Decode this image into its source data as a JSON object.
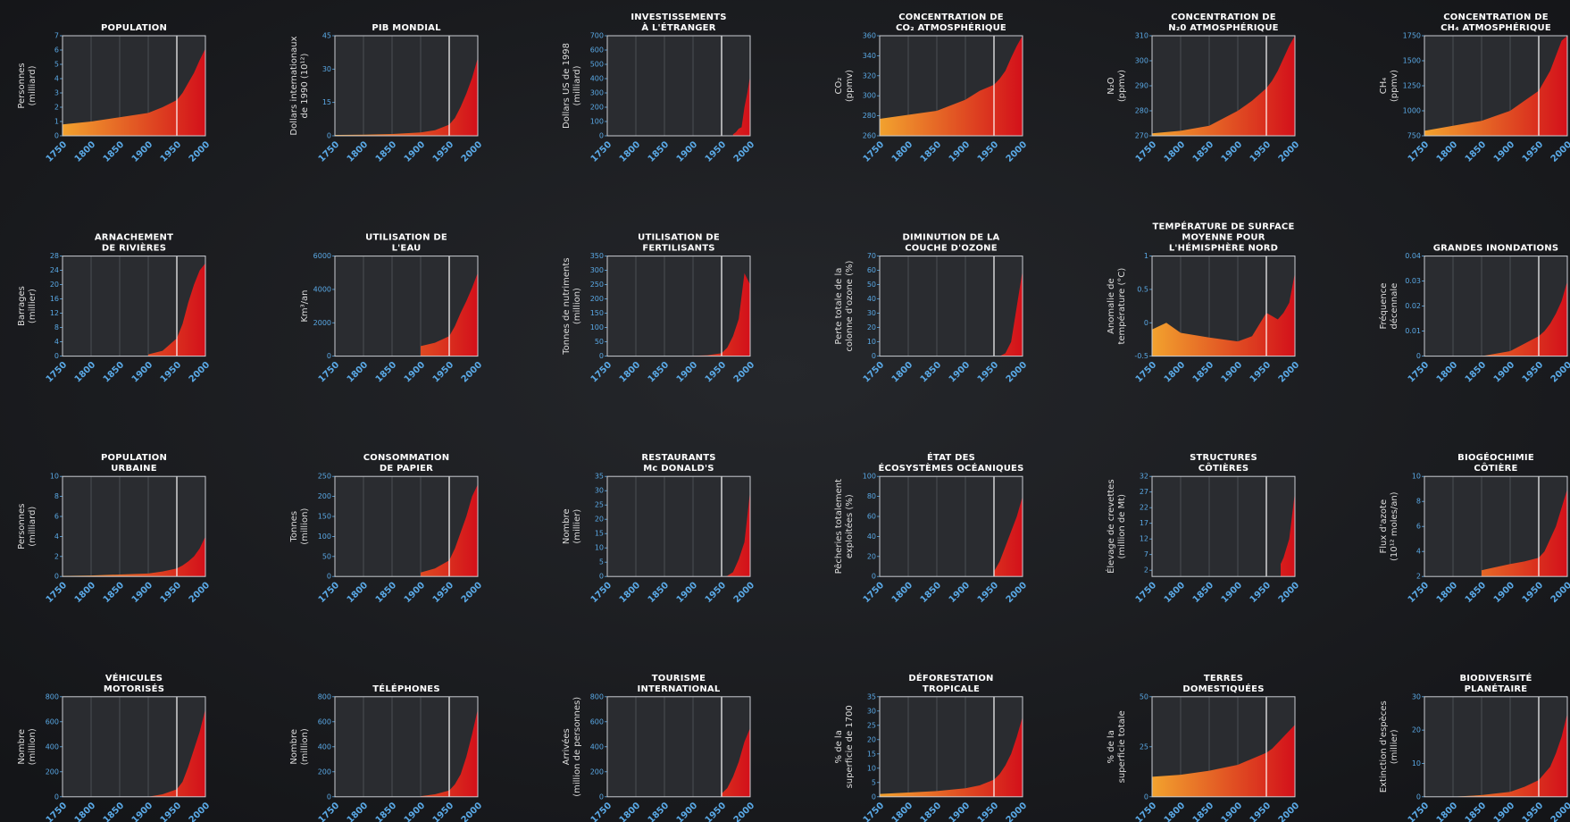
{
  "style": {
    "fill_from": "#f2a22e",
    "fill_to": "#d3101a",
    "plot_bg": "#2a2c30"
  },
  "chart_data": [
    {
      "type": "area",
      "title": [
        "POPULATION"
      ],
      "ylabel": [
        "Personnes",
        "(milliard)"
      ],
      "xlim": [
        1750,
        2000
      ],
      "xticks": [
        1750,
        1800,
        1850,
        1900,
        1950,
        2000
      ],
      "ylim": [
        0,
        7
      ],
      "yticks": [
        0,
        1,
        2,
        3,
        4,
        5,
        6,
        7
      ],
      "reference_line": 1950,
      "x": [
        1750,
        1800,
        1850,
        1900,
        1925,
        1950,
        1960,
        1970,
        1980,
        1990,
        2000
      ],
      "values": [
        0.8,
        1.0,
        1.3,
        1.6,
        2.0,
        2.5,
        3.0,
        3.7,
        4.4,
        5.3,
        6.1
      ]
    },
    {
      "type": "area",
      "title": [
        "PIB MONDIAL"
      ],
      "ylabel": [
        "Dollars internationaux",
        "de 1990 (10¹²)"
      ],
      "xlim": [
        1750,
        2000
      ],
      "xticks": [
        1750,
        1800,
        1850,
        1900,
        1950,
        2000
      ],
      "ylim": [
        0,
        45
      ],
      "yticks": [
        0,
        15,
        30,
        45
      ],
      "reference_line": 1950,
      "x": [
        1750,
        1800,
        1850,
        1900,
        1925,
        1950,
        1960,
        1970,
        1980,
        1990,
        2000
      ],
      "values": [
        0.4,
        0.5,
        0.8,
        1.5,
        2.5,
        5,
        8,
        13,
        19,
        26,
        35
      ]
    },
    {
      "type": "area",
      "title": [
        "INVESTISSEMENTS",
        "À L'ÉTRANGER"
      ],
      "ylabel": [
        "Dollars US de 1998",
        "(milliard)"
      ],
      "xlim": [
        1750,
        2000
      ],
      "xticks": [
        1750,
        1800,
        1850,
        1900,
        1950,
        2000
      ],
      "ylim": [
        0,
        700
      ],
      "yticks": [
        0,
        100,
        200,
        300,
        400,
        500,
        600,
        700
      ],
      "reference_line": 1950,
      "x": [
        1970,
        1975,
        1980,
        1985,
        1990,
        1995,
        2000
      ],
      "values": [
        10,
        25,
        50,
        60,
        200,
        300,
        420
      ]
    },
    {
      "type": "area",
      "title": [
        "CONCENTRATION DE",
        "CO₂ ATMOSPHÉRIQUE"
      ],
      "ylabel": [
        "CO₂",
        "(ppmv)"
      ],
      "xlim": [
        1750,
        2000
      ],
      "xticks": [
        1750,
        1800,
        1850,
        1900,
        1950,
        2000
      ],
      "ylim": [
        260,
        360
      ],
      "yticks": [
        260,
        280,
        300,
        320,
        340,
        360
      ],
      "reference_line": 1950,
      "x": [
        1750,
        1800,
        1850,
        1900,
        1925,
        1950,
        1960,
        1970,
        1980,
        1990,
        2000
      ],
      "values": [
        277,
        281,
        285,
        296,
        305,
        311,
        317,
        325,
        338,
        350,
        360
      ]
    },
    {
      "type": "area",
      "title": [
        "CONCENTRATION DE",
        "N₂0 ATMOSPHÉRIQUE"
      ],
      "ylabel": [
        "N₂O",
        "(ppmv)"
      ],
      "xlim": [
        1750,
        2000
      ],
      "xticks": [
        1750,
        1800,
        1850,
        1900,
        1950,
        2000
      ],
      "ylim": [
        270,
        310
      ],
      "yticks": [
        270,
        280,
        290,
        300,
        310
      ],
      "reference_line": 1950,
      "x": [
        1750,
        1800,
        1850,
        1900,
        1925,
        1950,
        1960,
        1970,
        1980,
        1990,
        2000
      ],
      "values": [
        271,
        272,
        274,
        280,
        284,
        289,
        292,
        296,
        301,
        306,
        310
      ]
    },
    {
      "type": "area",
      "title": [
        "CONCENTRATION DE",
        "CH₄ ATMOSPHÉRIQUE"
      ],
      "ylabel": [
        "CH₄",
        "(ppmv)"
      ],
      "xlim": [
        1750,
        2000
      ],
      "xticks": [
        1750,
        1800,
        1850,
        1900,
        1950,
        2000
      ],
      "ylim": [
        750,
        1750
      ],
      "yticks": [
        750,
        1000,
        1250,
        1500,
        1750
      ],
      "reference_line": 1950,
      "x": [
        1750,
        1800,
        1850,
        1900,
        1925,
        1950,
        1960,
        1970,
        1980,
        1990,
        2000
      ],
      "values": [
        800,
        850,
        900,
        1000,
        1100,
        1200,
        1300,
        1400,
        1550,
        1700,
        1750
      ]
    },
    {
      "type": "area",
      "title": [
        "ARNACHEMENT",
        "DE RIVIÈRES"
      ],
      "ylabel": [
        "Barrages",
        "(millier)"
      ],
      "xlim": [
        1750,
        2000
      ],
      "xticks": [
        1750,
        1800,
        1850,
        1900,
        1950,
        2000
      ],
      "ylim": [
        0,
        28
      ],
      "yticks": [
        0,
        4,
        8,
        12,
        16,
        20,
        24,
        28
      ],
      "reference_line": 1950,
      "x": [
        1900,
        1925,
        1950,
        1960,
        1970,
        1980,
        1990,
        2000
      ],
      "values": [
        0.5,
        1.5,
        5,
        9,
        15,
        20,
        24,
        26
      ]
    },
    {
      "type": "area",
      "title": [
        "UTILISATION DE",
        "L'EAU"
      ],
      "ylabel": [
        "Km³/an"
      ],
      "xlim": [
        1750,
        2000
      ],
      "xticks": [
        1750,
        1800,
        1850,
        1900,
        1950,
        2000
      ],
      "ylim": [
        0,
        6000
      ],
      "yticks": [
        0,
        2000,
        4000,
        6000
      ],
      "reference_line": 1950,
      "x": [
        1900,
        1925,
        1950,
        1960,
        1970,
        1980,
        1990,
        2000
      ],
      "values": [
        600,
        800,
        1200,
        1800,
        2600,
        3300,
        4100,
        5000
      ]
    },
    {
      "type": "area",
      "title": [
        "UTILISATION DE",
        "FERTILISANTS"
      ],
      "ylabel": [
        "Tonnes de nutriments",
        "(million)"
      ],
      "xlim": [
        1750,
        2000
      ],
      "xticks": [
        1750,
        1800,
        1850,
        1900,
        1950,
        2000
      ],
      "ylim": [
        0,
        350
      ],
      "yticks": [
        0,
        50,
        100,
        150,
        200,
        250,
        300,
        350
      ],
      "reference_line": 1950,
      "x": [
        1900,
        1925,
        1950,
        1960,
        1970,
        1980,
        1990,
        2000
      ],
      "values": [
        1,
        3,
        10,
        30,
        70,
        130,
        290,
        250
      ]
    },
    {
      "type": "area",
      "title": [
        "DIMINUTION DE LA",
        "COUCHE D'OZONE"
      ],
      "ylabel": [
        "Perte totale de la",
        "colonne d'ozone (%)"
      ],
      "xlim": [
        1750,
        2000
      ],
      "xticks": [
        1750,
        1800,
        1850,
        1900,
        1950,
        2000
      ],
      "ylim": [
        0,
        70
      ],
      "yticks": [
        0,
        10,
        20,
        30,
        40,
        50,
        60,
        70
      ],
      "reference_line": 1950,
      "x": [
        1950,
        1960,
        1970,
        1980,
        1990,
        2000
      ],
      "values": [
        0,
        0,
        2,
        10,
        35,
        60
      ]
    },
    {
      "type": "area",
      "title": [
        "TEMPÉRATURE DE SURFACE",
        "MOYENNE POUR",
        "L'HÉMISPHÈRE NORD"
      ],
      "ylabel": [
        "Anomalie de",
        "température (°C)"
      ],
      "xlim": [
        1750,
        2000
      ],
      "xticks": [
        1750,
        1800,
        1850,
        1900,
        1950,
        2000
      ],
      "ylim": [
        -0.5,
        1
      ],
      "yticks": [
        -0.5,
        0,
        0.5,
        1
      ],
      "reference_line": 1950,
      "x": [
        1750,
        1775,
        1800,
        1850,
        1900,
        1925,
        1950,
        1960,
        1970,
        1980,
        1990,
        2000
      ],
      "values": [
        -0.1,
        0.0,
        -0.15,
        -0.22,
        -0.28,
        -0.2,
        0.15,
        0.1,
        0.05,
        0.15,
        0.3,
        0.75
      ]
    },
    {
      "type": "area",
      "title": [
        "GRANDES INONDATIONS"
      ],
      "ylabel": [
        "Fréquence",
        "décennale"
      ],
      "xlim": [
        1750,
        2000
      ],
      "xticks": [
        1750,
        1800,
        1850,
        1900,
        1950,
        2000
      ],
      "ylim": [
        0,
        0.04
      ],
      "yticks": [
        0,
        0.01,
        0.02,
        0.03,
        0.04
      ],
      "reference_line": 1950,
      "x": [
        1750,
        1800,
        1850,
        1900,
        1925,
        1950,
        1960,
        1970,
        1980,
        1990,
        2000
      ],
      "values": [
        0,
        0,
        0,
        0.002,
        0.005,
        0.008,
        0.01,
        0.013,
        0.017,
        0.022,
        0.03
      ]
    },
    {
      "type": "area",
      "title": [
        "POPULATION",
        "URBAINE"
      ],
      "ylabel": [
        "Personnes",
        "(milliard)"
      ],
      "xlim": [
        1750,
        2000
      ],
      "xticks": [
        1750,
        1800,
        1850,
        1900,
        1950,
        2000
      ],
      "ylim": [
        0,
        10
      ],
      "yticks": [
        0,
        2,
        4,
        6,
        8,
        10
      ],
      "reference_line": 1950,
      "x": [
        1750,
        1800,
        1850,
        1900,
        1925,
        1950,
        1960,
        1970,
        1980,
        1990,
        2000
      ],
      "values": [
        0.05,
        0.1,
        0.2,
        0.3,
        0.5,
        0.8,
        1.1,
        1.5,
        2.0,
        2.8,
        4.0
      ]
    },
    {
      "type": "area",
      "title": [
        "CONSOMMATION",
        "DE PAPIER"
      ],
      "ylabel": [
        "Tonnes",
        "(million)"
      ],
      "xlim": [
        1750,
        2000
      ],
      "xticks": [
        1750,
        1800,
        1850,
        1900,
        1950,
        2000
      ],
      "ylim": [
        0,
        250
      ],
      "yticks": [
        0,
        50,
        100,
        150,
        200,
        250
      ],
      "reference_line": 1950,
      "x": [
        1900,
        1925,
        1950,
        1960,
        1970,
        1980,
        1990,
        2000
      ],
      "values": [
        10,
        20,
        40,
        70,
        110,
        150,
        200,
        230
      ]
    },
    {
      "type": "area",
      "title": [
        "RESTAURANTS",
        "Mc DONALD'S"
      ],
      "ylabel": [
        "Nombre",
        "(millier)"
      ],
      "xlim": [
        1750,
        2000
      ],
      "xticks": [
        1750,
        1800,
        1850,
        1900,
        1950,
        2000
      ],
      "ylim": [
        0,
        35
      ],
      "yticks": [
        0,
        5,
        10,
        15,
        20,
        25,
        30,
        35
      ],
      "reference_line": 1950,
      "x": [
        1955,
        1960,
        1970,
        1980,
        1990,
        2000
      ],
      "values": [
        0,
        0.2,
        1.5,
        6,
        12,
        30
      ]
    },
    {
      "type": "area",
      "title": [
        "ÉTAT DES",
        "ÉCOSYSTÈMES OCÉANIQUES"
      ],
      "ylabel": [
        "Pêcheries totalement",
        "exploitées (%)"
      ],
      "xlim": [
        1750,
        2000
      ],
      "xticks": [
        1750,
        1800,
        1850,
        1900,
        1950,
        2000
      ],
      "ylim": [
        0,
        100
      ],
      "yticks": [
        0,
        20,
        40,
        60,
        80,
        100
      ],
      "reference_line": 1950,
      "x": [
        1950,
        1960,
        1970,
        1980,
        1990,
        2000
      ],
      "values": [
        5,
        15,
        30,
        45,
        60,
        80
      ]
    },
    {
      "type": "area",
      "title": [
        "STRUCTURES",
        "CÔTIÈRES"
      ],
      "ylabel": [
        "Élevage de crevettes",
        "(million de Mt)"
      ],
      "xlim": [
        1750,
        2000
      ],
      "xticks": [
        1750,
        1800,
        1850,
        1900,
        1950,
        2000
      ],
      "ylim": [
        0,
        32
      ],
      "yticks": [
        2,
        7,
        12,
        17,
        22,
        27,
        32
      ],
      "reference_line": 1950,
      "x": [
        1975,
        1980,
        1990,
        2000
      ],
      "values": [
        4,
        6,
        12,
        27
      ]
    },
    {
      "type": "area",
      "title": [
        "BIOGÉOCHIMIE",
        "CÔTIÈRE"
      ],
      "ylabel": [
        "Flux d'azote",
        "(10¹² moles/an)"
      ],
      "xlim": [
        1750,
        2000
      ],
      "xticks": [
        1750,
        1800,
        1850,
        1900,
        1950,
        2000
      ],
      "ylim": [
        2,
        10
      ],
      "yticks": [
        2,
        4,
        6,
        8,
        10
      ],
      "reference_line": 1950,
      "x": [
        1850,
        1900,
        1925,
        1950,
        1960,
        1970,
        1980,
        1990,
        2000
      ],
      "values": [
        2.5,
        3,
        3.2,
        3.5,
        4,
        5,
        6,
        7.5,
        9
      ]
    },
    {
      "type": "area",
      "title": [
        "VÉHICULES",
        "MOTORISÉS"
      ],
      "ylabel": [
        "Nombre",
        "(million)"
      ],
      "xlim": [
        1750,
        2000
      ],
      "xticks": [
        1750,
        1800,
        1850,
        1900,
        1950,
        2000
      ],
      "ylim": [
        0,
        800
      ],
      "yticks": [
        0,
        200,
        400,
        600,
        800
      ],
      "reference_line": 1950,
      "x": [
        1900,
        1925,
        1950,
        1960,
        1970,
        1980,
        1990,
        2000
      ],
      "values": [
        0,
        20,
        60,
        120,
        240,
        380,
        520,
        700
      ]
    },
    {
      "type": "area",
      "title": [
        "TÉLÉPHONES"
      ],
      "ylabel": [
        "Nombre",
        "(million)"
      ],
      "xlim": [
        1750,
        2000
      ],
      "xticks": [
        1750,
        1800,
        1850,
        1900,
        1950,
        2000
      ],
      "ylim": [
        0,
        800
      ],
      "yticks": [
        0,
        200,
        400,
        600,
        800
      ],
      "reference_line": 1950,
      "x": [
        1900,
        1925,
        1950,
        1960,
        1970,
        1980,
        1990,
        2000
      ],
      "values": [
        5,
        20,
        50,
        100,
        180,
        320,
        500,
        700
      ]
    },
    {
      "type": "area",
      "title": [
        "TOURISME",
        "INTERNATIONAL"
      ],
      "ylabel": [
        "Arrivées",
        "(million de personnes)"
      ],
      "xlim": [
        1750,
        2000
      ],
      "xticks": [
        1750,
        1800,
        1850,
        1900,
        1950,
        2000
      ],
      "ylim": [
        0,
        800
      ],
      "yticks": [
        0,
        200,
        400,
        600,
        800
      ],
      "reference_line": 1950,
      "x": [
        1950,
        1960,
        1970,
        1980,
        1990,
        2000
      ],
      "values": [
        25,
        70,
        160,
        280,
        440,
        550
      ]
    },
    {
      "type": "area",
      "title": [
        "DÉFORESTATION",
        "TROPICALE"
      ],
      "ylabel": [
        "% de la",
        "superficie de 1700"
      ],
      "xlim": [
        1750,
        2000
      ],
      "xticks": [
        1750,
        1800,
        1850,
        1900,
        1950,
        2000
      ],
      "ylim": [
        0,
        35
      ],
      "yticks": [
        0,
        5,
        10,
        15,
        20,
        25,
        30,
        35
      ],
      "reference_line": 1950,
      "x": [
        1750,
        1800,
        1850,
        1900,
        1925,
        1950,
        1960,
        1970,
        1980,
        1990,
        2000
      ],
      "values": [
        1,
        1.5,
        2,
        3,
        4,
        6,
        8,
        11,
        15,
        21,
        28
      ]
    },
    {
      "type": "area",
      "title": [
        "TERRES",
        "DOMESTIQUÉES"
      ],
      "ylabel": [
        "% de la",
        "superficie totale"
      ],
      "xlim": [
        1750,
        2000
      ],
      "xticks": [
        1750,
        1800,
        1850,
        1900,
        1950,
        2000
      ],
      "ylim": [
        0,
        50
      ],
      "yticks": [
        0,
        25,
        50
      ],
      "reference_line": 1950,
      "x": [
        1750,
        1800,
        1850,
        1900,
        1925,
        1950,
        1960,
        1970,
        1980,
        1990,
        2000
      ],
      "values": [
        10,
        11,
        13,
        16,
        19,
        22,
        24,
        27,
        30,
        33,
        36
      ]
    },
    {
      "type": "area",
      "title": [
        "BIODIVERSITÉ",
        "PLANÉTAIRE"
      ],
      "ylabel": [
        "Extinction d'espèces",
        "(millier)"
      ],
      "xlim": [
        1750,
        2000
      ],
      "xticks": [
        1750,
        1800,
        1850,
        1900,
        1950,
        2000
      ],
      "ylim": [
        0,
        30
      ],
      "yticks": [
        0,
        10,
        20,
        30
      ],
      "reference_line": 1950,
      "x": [
        1750,
        1800,
        1850,
        1900,
        1925,
        1950,
        1960,
        1970,
        1980,
        1990,
        2000
      ],
      "values": [
        0,
        0,
        0.5,
        1.5,
        3,
        5,
        7,
        9,
        13,
        18,
        25
      ]
    }
  ]
}
